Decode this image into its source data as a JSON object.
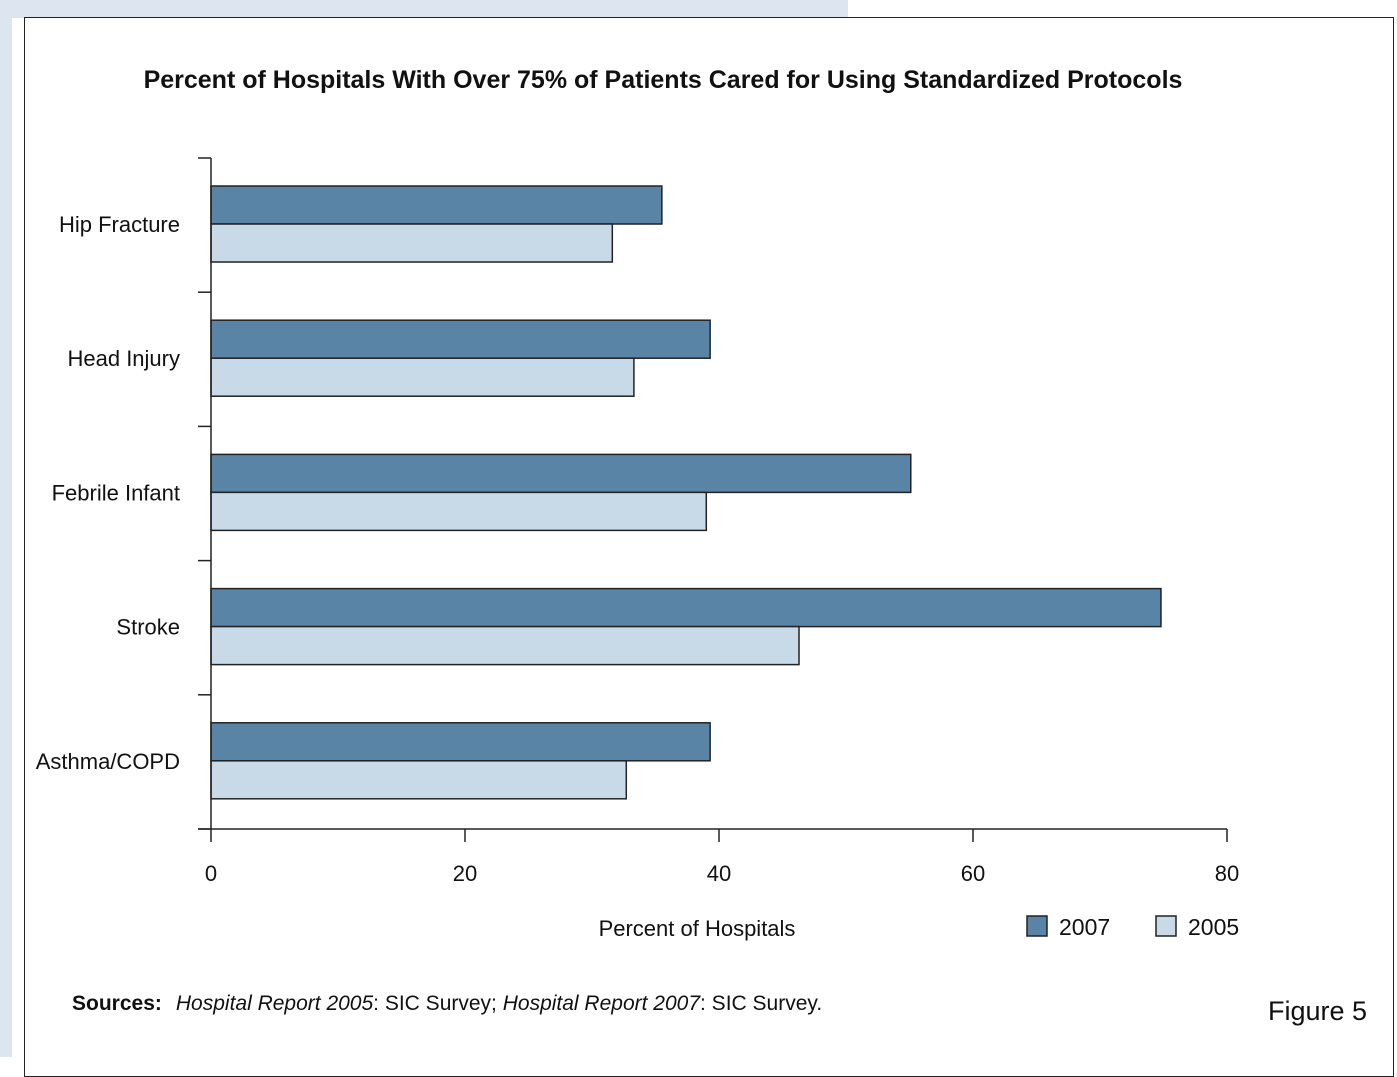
{
  "chart_data": {
    "type": "bar",
    "orientation": "horizontal",
    "title": "Percent of Hospitals With Over 75% of Patients Cared for Using Standardized Protocols",
    "xlabel": "Percent of Hospitals",
    "ylabel": "",
    "categories": [
      "Hip Fracture",
      "Head Injury",
      "Febrile Infant",
      "Stroke",
      "Asthma/COPD"
    ],
    "series": [
      {
        "name": "2007",
        "values": [
          35.5,
          39.3,
          55.1,
          74.8,
          39.3
        ],
        "color": "#5a84a5"
      },
      {
        "name": "2005",
        "values": [
          31.6,
          33.3,
          39.0,
          46.3,
          32.7
        ],
        "color": "#c8d9e8"
      }
    ],
    "xlim": [
      0,
      80
    ],
    "xticks": [
      "0",
      "20",
      "40",
      "60",
      "80"
    ],
    "grid": false,
    "legend": "bottom-right"
  },
  "sources": {
    "label": "Sources:",
    "report_2005": "Hospital Report 2005",
    "text_2005": ": SIC Survey;",
    "report_2007": "Hospital Report 2007",
    "text_2007": ": SIC Survey."
  },
  "figure_label": "Figure 5"
}
